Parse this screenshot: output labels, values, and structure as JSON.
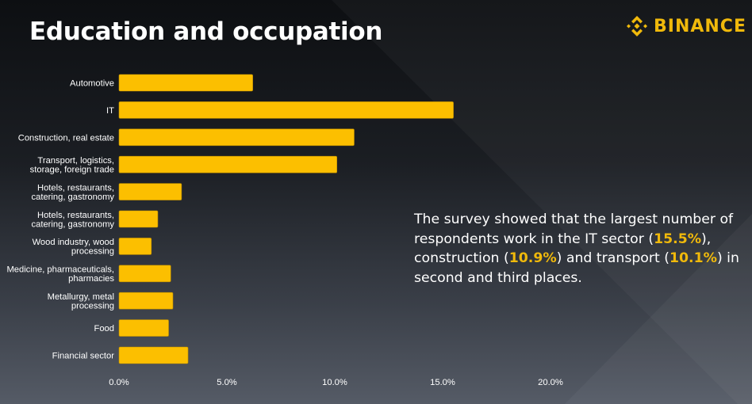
{
  "title": "Education and occupation",
  "brand": {
    "name": "BINANCE",
    "icon": "binance-diamond-icon",
    "color": "#f0b90b"
  },
  "summary": {
    "part1": "The survey showed that the largest number of respondents work in the IT sector (",
    "val1": "15.5%",
    "part2": "), construction (",
    "val2": "10.9%",
    "part3": ") and transport (",
    "val3": "10.1%",
    "part4": ") in second and third places."
  },
  "chart_data": {
    "type": "bar",
    "orientation": "horizontal",
    "title": "Education and occupation",
    "xlabel": "",
    "ylabel": "",
    "xlim": [
      0,
      20
    ],
    "x_ticks": [
      "0.0%",
      "5.0%",
      "10.0%",
      "15.0%",
      "20.0%"
    ],
    "x_tick_values": [
      0,
      5,
      10,
      15,
      20
    ],
    "grid": false,
    "bar_color": "#fcbf00",
    "categories": [
      [
        "Automotive"
      ],
      [
        "IT"
      ],
      [
        "Construction, real estate"
      ],
      [
        "Transport, logistics,",
        "storage, foreign trade"
      ],
      [
        "Hotels, restaurants,",
        "catering, gastronomy"
      ],
      [
        "Hotels, restaurants,",
        "catering, gastronomy"
      ],
      [
        "Wood industry, wood",
        "processing"
      ],
      [
        "Medicine, pharmaceuticals,",
        "pharmacies"
      ],
      [
        "Metallurgy, metal",
        "processing"
      ],
      [
        "Food"
      ],
      [
        "Financial sector"
      ]
    ],
    "values": [
      6.2,
      15.5,
      10.9,
      10.1,
      2.9,
      1.8,
      1.5,
      2.4,
      2.5,
      2.3,
      3.2
    ]
  }
}
